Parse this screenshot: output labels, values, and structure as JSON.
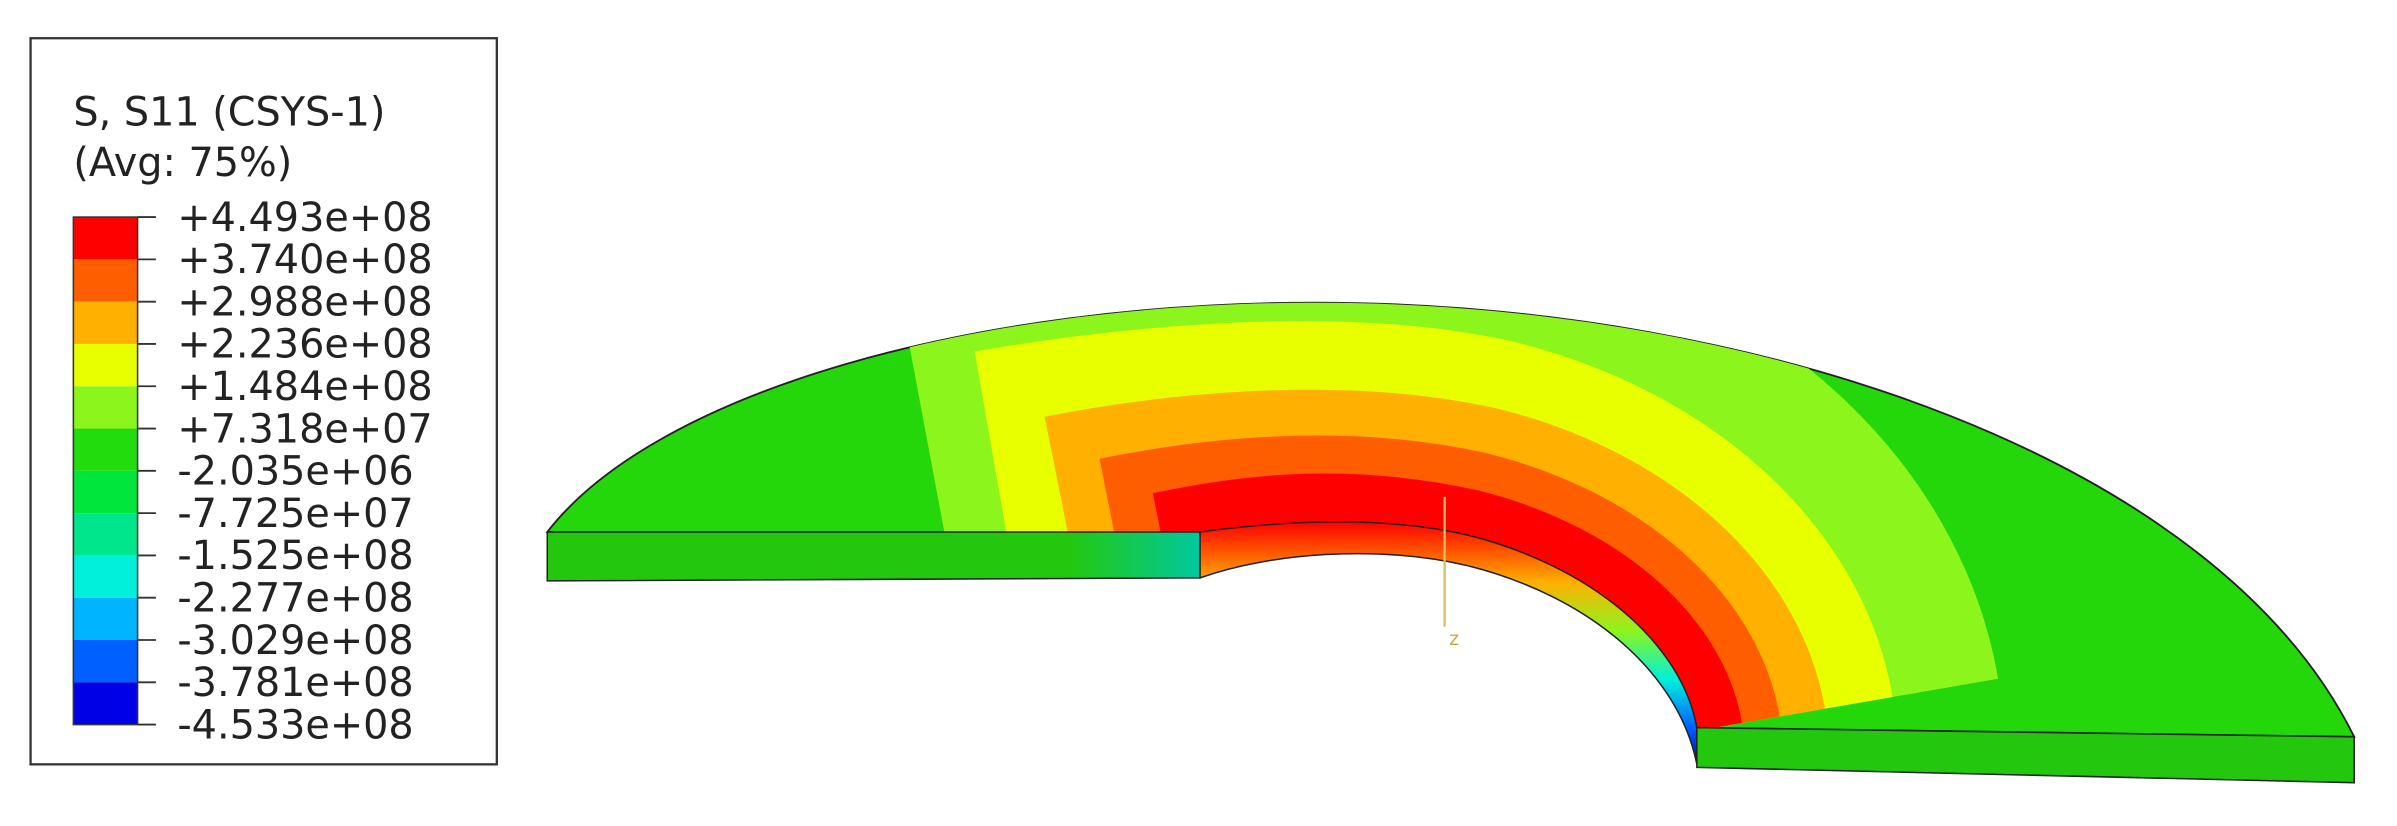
{
  "legend": {
    "title": [
      "S, S11 (CSYS-1)",
      "(Avg: 75%)"
    ],
    "labels": [
      "+4.493e+08",
      "+3.740e+08",
      "+2.988e+08",
      "+2.236e+08",
      "+1.484e+08",
      "+7.318e+07",
      "-2.035e+06",
      "-7.725e+07",
      "-1.525e+08",
      "-2.277e+08",
      "-3.029e+08",
      "-3.781e+08",
      "-4.533e+08"
    ],
    "colors": [
      "#ff0000",
      "#ff5e00",
      "#ffb000",
      "#e8ff00",
      "#8cf51c",
      "#23dc0e",
      "#00e63c",
      "#00e68c",
      "#00f0dc",
      "#00b4ff",
      "#0060ff",
      "#0000e6"
    ]
  },
  "axis": {
    "label": "z"
  }
}
